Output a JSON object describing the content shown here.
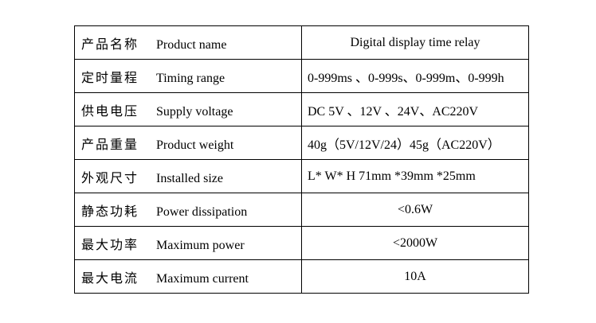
{
  "table": {
    "rows": [
      [
        "产品名称",
        "Product name",
        "Digital display time relay"
      ],
      [
        "定时量程",
        "Timing range",
        "0-999ms 、0-999s、0-999m、0-999h"
      ],
      [
        "供电电压",
        "Supply voltage",
        "DC 5V 、12V 、24V、AC220V"
      ],
      [
        "产品重量",
        "Product weight",
        "40g（5V/12V/24）45g（AC220V）"
      ],
      [
        "外观尺寸",
        "Installed size",
        "L* W* H  71mm *39mm *25mm"
      ],
      [
        "静态功耗",
        "Power dissipation",
        "<0.6W"
      ],
      [
        "最大功率",
        "Maximum power",
        "<2000W"
      ],
      [
        "最大电流",
        "Maximum current",
        "10A"
      ]
    ]
  }
}
